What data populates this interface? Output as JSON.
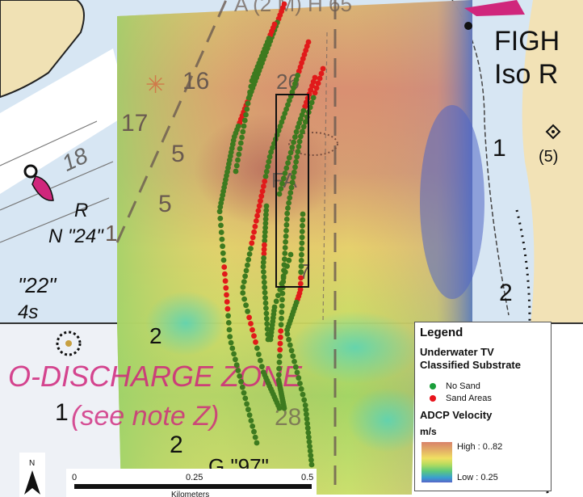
{
  "chart_labels": {
    "fight_label": "FIGH",
    "iso_label": "Iso R",
    "top_partial_label": "A (2 M) H 65",
    "depth_16": "16",
    "depth_17": "17",
    "depth_18": "18",
    "depth_5a": "5",
    "depth_5b": "5",
    "depth_1a": "1",
    "depth_1b": "1",
    "depth_1c": "1",
    "depth_2a": "2",
    "depth_2b": "2",
    "depth_2c": "2",
    "depth_26": "26",
    "depth_28": "28",
    "depth_7": "7",
    "fa_label": "FA",
    "buoy_r": "R",
    "buoy_n24": "N \"24\"",
    "buoy_22": "\"22\"",
    "buoy_4s": "4s",
    "buoy_g97": "G \"97\"",
    "spot_5": "(5)",
    "discharge_zone": "O-DISCHARGE ZONE",
    "see_note": "(see note Z)"
  },
  "scale_bar": {
    "tick_0": "0",
    "tick_025": "0.25",
    "tick_05": "0.5",
    "units": "Kilometers"
  },
  "north_arrow": {
    "label": "N"
  },
  "legend": {
    "title": "Legend",
    "section1_title_line1": "Underwater TV",
    "section1_title_line2": "Classified Substrate",
    "items": [
      {
        "label": "No Sand",
        "color": "#1a9e3a"
      },
      {
        "label": "Sand Areas",
        "color": "#e8141c"
      }
    ],
    "section2_title": "ADCP Velocity",
    "units": "m/s",
    "high_label": "High : 0..82",
    "low_label": "Low : 0.25"
  },
  "colors": {
    "track_no_sand": "#3d7a1f",
    "track_sand": "#e11a1a",
    "land": "#f2e2b8",
    "water": "#ccdff0",
    "magenta": "#d0267c"
  }
}
